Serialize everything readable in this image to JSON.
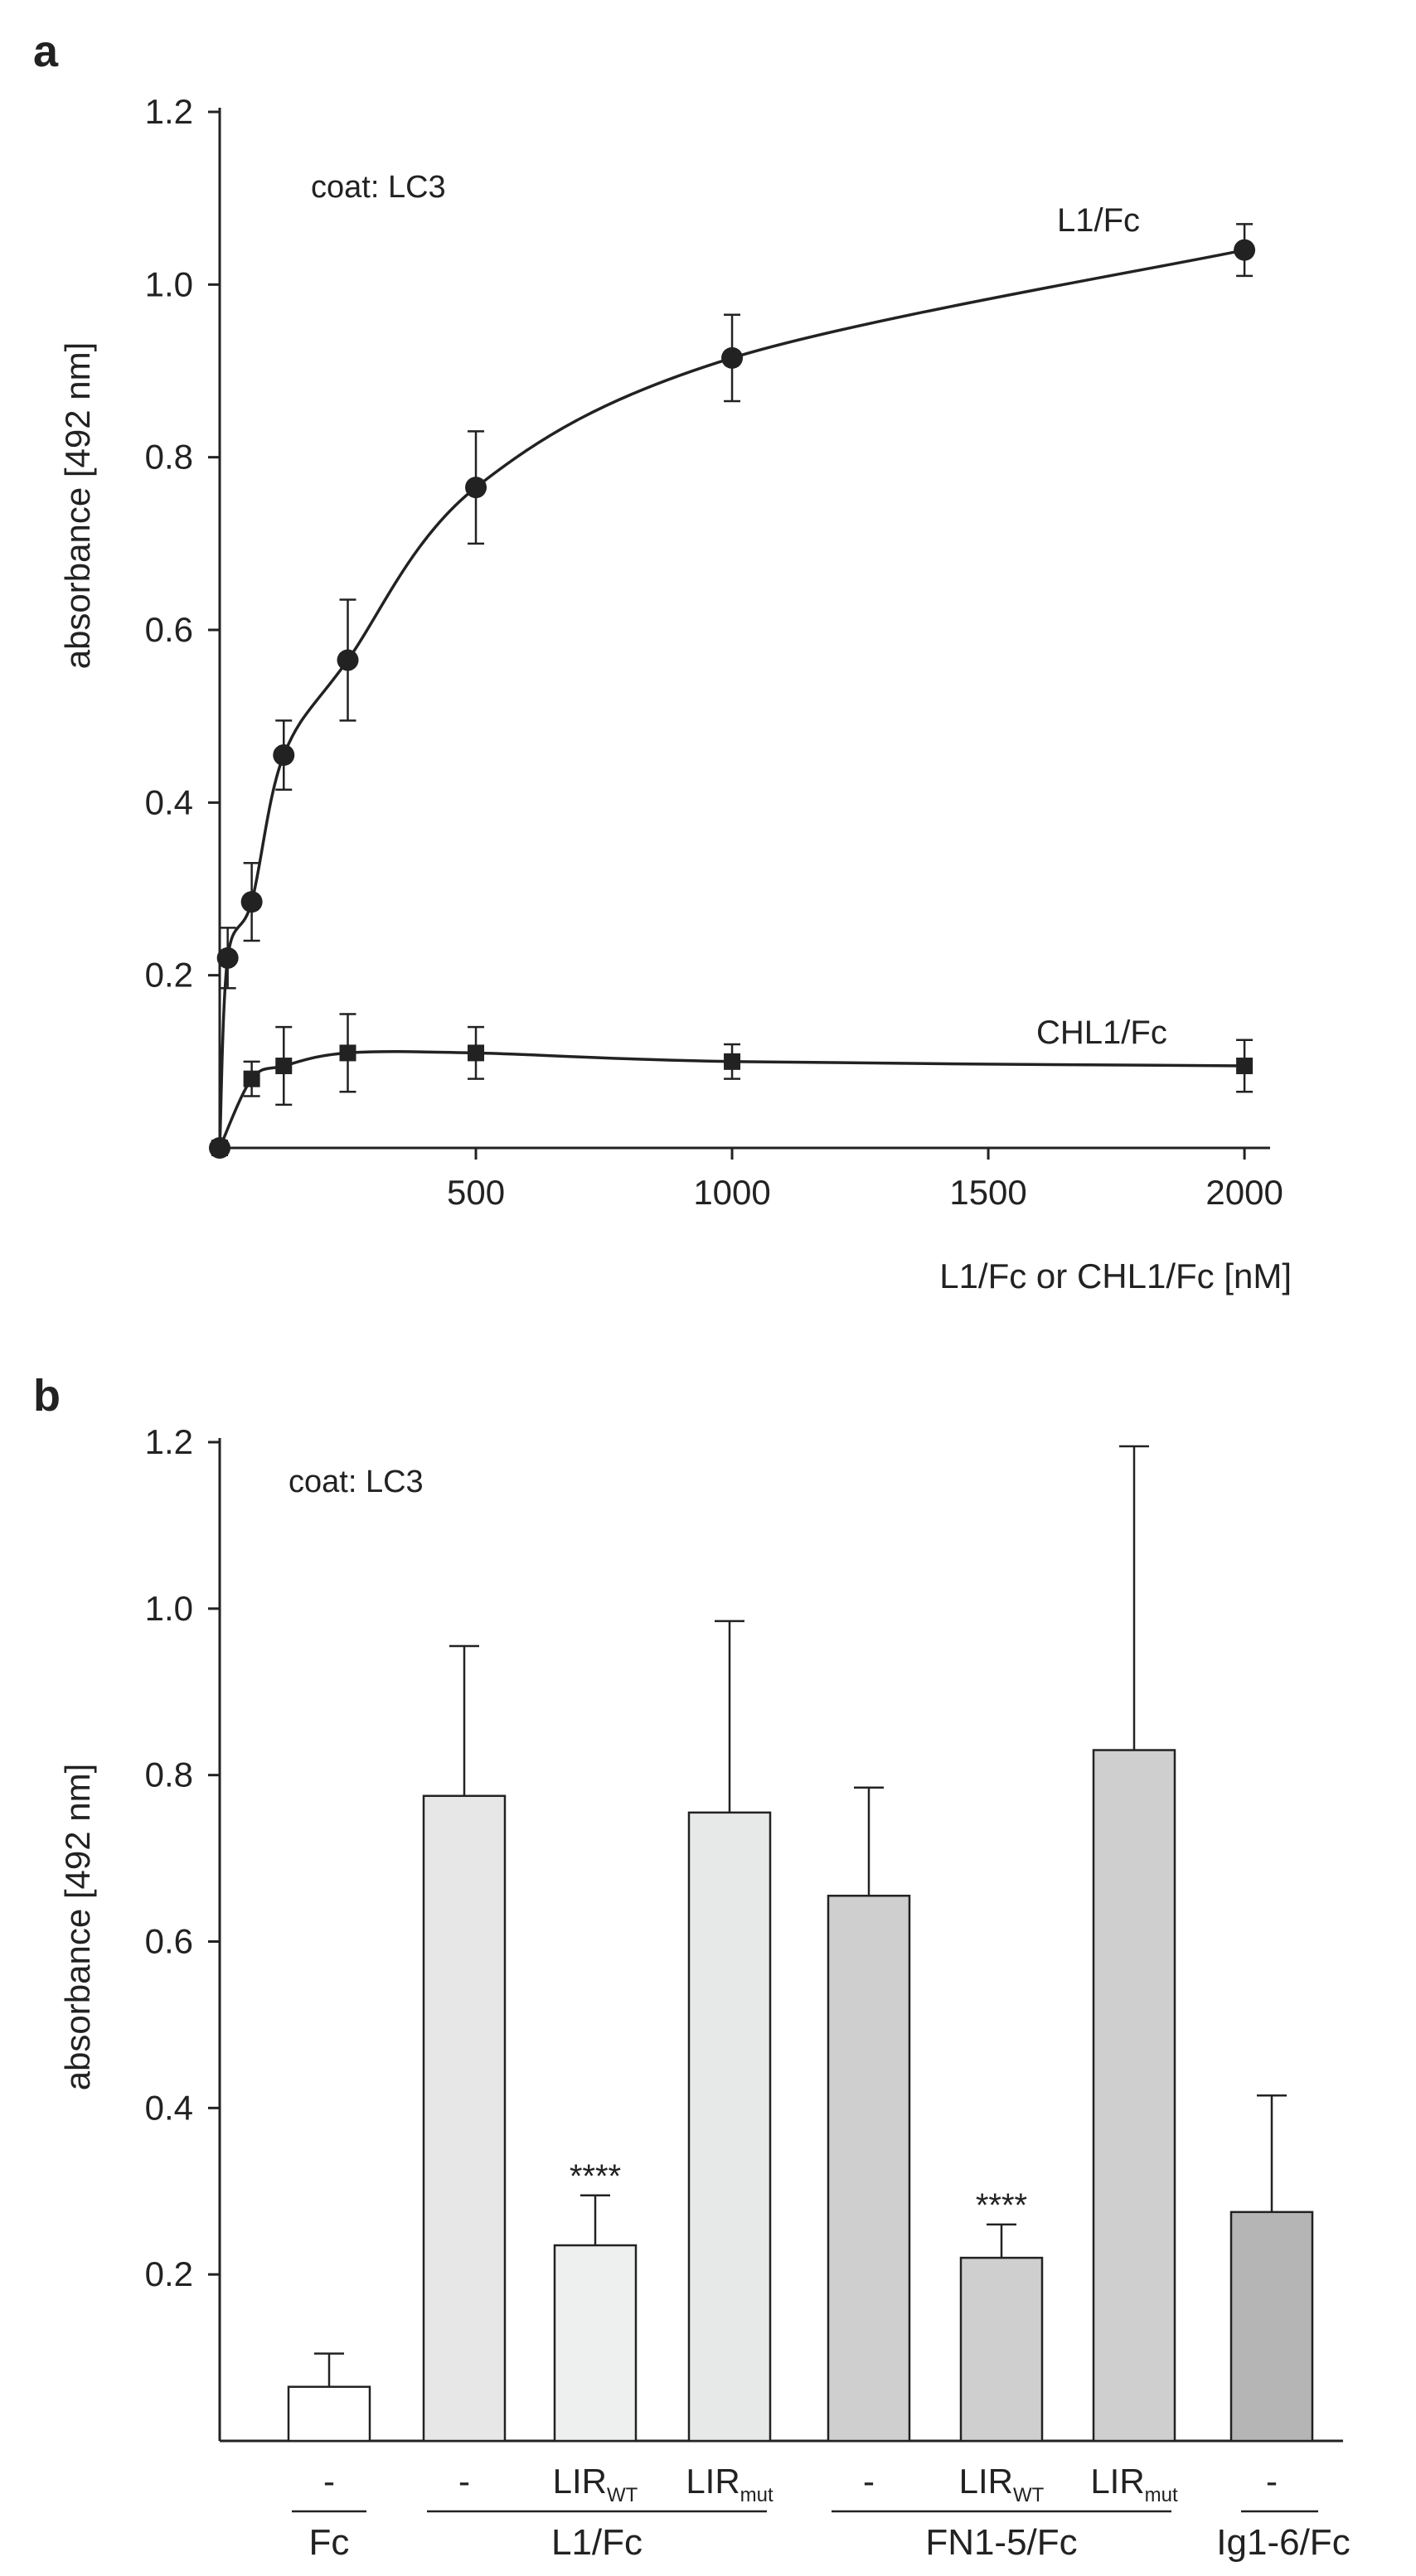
{
  "chart_data": [
    {
      "panel_label": "a",
      "type": "line",
      "annotation": "coat: LC3",
      "xlabel": "L1/Fc or CHL1/Fc  [nM]",
      "ylabel": "absorbance [492 nm]",
      "xlim": [
        0,
        2050
      ],
      "ylim": [
        0,
        1.2
      ],
      "xticks": [
        500,
        1000,
        1500,
        2000
      ],
      "yticks": [
        0.2,
        0.4,
        0.6,
        0.8,
        1.0,
        1.2
      ],
      "xtick_labels": [
        "500",
        "1000",
        "1500",
        "2000"
      ],
      "ytick_labels": [
        "0.2",
        "0.4",
        "0.6",
        "0.8",
        "1.0",
        "1.2"
      ],
      "series": [
        {
          "name": "L1/Fc",
          "marker": "circle",
          "x": [
            0,
            15.6,
            62.5,
            125,
            250,
            500,
            1000,
            2000
          ],
          "y": [
            0.0,
            0.22,
            0.285,
            0.455,
            0.565,
            0.765,
            0.915,
            1.04
          ],
          "err": [
            0.0,
            0.035,
            0.045,
            0.04,
            0.07,
            0.065,
            0.05,
            0.03
          ]
        },
        {
          "name": "CHL1/Fc",
          "marker": "square",
          "x": [
            0,
            62.5,
            125,
            250,
            500,
            1000,
            2000
          ],
          "y": [
            0.0,
            0.08,
            0.095,
            0.11,
            0.11,
            0.1,
            0.095
          ],
          "err": [
            0.0,
            0.02,
            0.045,
            0.045,
            0.03,
            0.02,
            0.03
          ]
        }
      ]
    },
    {
      "panel_label": "b",
      "type": "bar",
      "annotation": "coat: LC3",
      "ylabel": "absorbance [492 nm]",
      "ylim": [
        0,
        1.2
      ],
      "yticks": [
        0.2,
        0.4,
        0.6,
        0.8,
        1.0,
        1.2
      ],
      "ytick_labels": [
        "0.2",
        "0.4",
        "0.6",
        "0.8",
        "1.0",
        "1.2"
      ],
      "bars": [
        {
          "label": "-",
          "sub": "",
          "group": "Fc",
          "value": 0.065,
          "err": 0.04,
          "color": "#ffffff",
          "sig": ""
        },
        {
          "label": "-",
          "sub": "",
          "group": "L1/Fc",
          "value": 0.775,
          "err": 0.18,
          "color": "#e7e7e7",
          "sig": ""
        },
        {
          "label": "LIR",
          "sub": "WT",
          "group": "L1/Fc",
          "value": 0.235,
          "err": 0.06,
          "color": "#eef0ef",
          "sig": "****"
        },
        {
          "label": "LIR",
          "sub": "mut",
          "group": "L1/Fc",
          "value": 0.755,
          "err": 0.23,
          "color": "#e7e9e8",
          "sig": ""
        },
        {
          "label": "-",
          "sub": "",
          "group": "FN1-5/Fc",
          "value": 0.655,
          "err": 0.13,
          "color": "#cfcfcf",
          "sig": ""
        },
        {
          "label": "LIR",
          "sub": "WT",
          "group": "FN1-5/Fc",
          "value": 0.22,
          "err": 0.04,
          "color": "#cfcfcf",
          "sig": "****"
        },
        {
          "label": "LIR",
          "sub": "mut",
          "group": "FN1-5/Fc",
          "value": 0.83,
          "err": 0.365,
          "color": "#cfcfcf",
          "sig": ""
        },
        {
          "label": "-",
          "sub": "",
          "group": "Ig1-6/Fc",
          "value": 0.275,
          "err": 0.14,
          "color": "#b5b5b5",
          "sig": ""
        }
      ],
      "groups": [
        "Fc",
        "L1/Fc",
        "FN1-5/Fc",
        "Ig1-6/Fc"
      ]
    }
  ]
}
